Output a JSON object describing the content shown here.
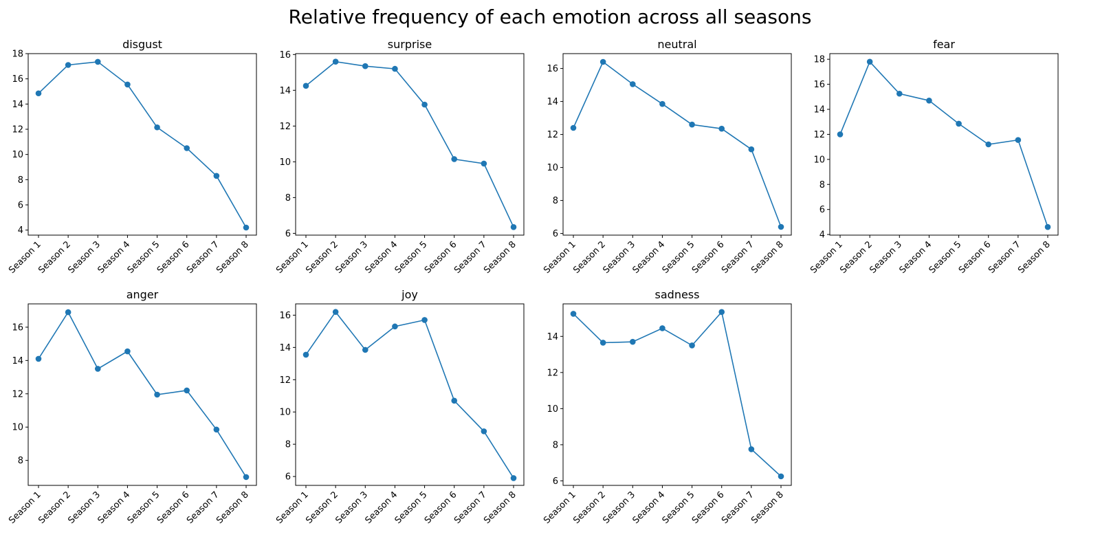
{
  "figure": {
    "title": "Relative frequency of each emotion across all seasons",
    "line_color": "#1f77b4"
  },
  "chart_data": [
    {
      "type": "line",
      "title": "disgust",
      "categories": [
        "Season 1",
        "Season 2",
        "Season 3",
        "Season 4",
        "Season 5",
        "Season 6",
        "Season 7",
        "Season 8"
      ],
      "values": [
        14.85,
        17.1,
        17.35,
        15.55,
        12.15,
        10.5,
        8.3,
        4.2
      ],
      "yticks": [
        4,
        6,
        8,
        10,
        12,
        14,
        16,
        18
      ],
      "ylim": [
        3.6,
        18.0
      ],
      "xlabel": "",
      "ylabel": "",
      "grid": false
    },
    {
      "type": "line",
      "title": "surprise",
      "categories": [
        "Season 1",
        "Season 2",
        "Season 3",
        "Season 4",
        "Season 5",
        "Season 6",
        "Season 7",
        "Season 8"
      ],
      "values": [
        14.25,
        15.6,
        15.35,
        15.2,
        13.2,
        10.15,
        9.9,
        6.35
      ],
      "yticks": [
        6,
        8,
        10,
        12,
        14,
        16
      ],
      "ylim": [
        5.9,
        16.05
      ],
      "xlabel": "",
      "ylabel": "",
      "grid": false
    },
    {
      "type": "line",
      "title": "neutral",
      "categories": [
        "Season 1",
        "Season 2",
        "Season 3",
        "Season 4",
        "Season 5",
        "Season 6",
        "Season 7",
        "Season 8"
      ],
      "values": [
        12.4,
        16.4,
        15.05,
        13.85,
        12.6,
        12.35,
        11.1,
        6.4
      ],
      "yticks": [
        6,
        8,
        10,
        12,
        14,
        16
      ],
      "ylim": [
        5.9,
        16.9
      ],
      "xlabel": "",
      "ylabel": "",
      "grid": false
    },
    {
      "type": "line",
      "title": "fear",
      "categories": [
        "Season 1",
        "Season 2",
        "Season 3",
        "Season 4",
        "Season 5",
        "Season 6",
        "Season 7",
        "Season 8"
      ],
      "values": [
        12.0,
        17.8,
        15.25,
        14.7,
        12.85,
        11.2,
        11.55,
        4.6
      ],
      "yticks": [
        4,
        6,
        8,
        10,
        12,
        14,
        16,
        18
      ],
      "ylim": [
        3.95,
        18.45
      ],
      "xlabel": "",
      "ylabel": "",
      "grid": false
    },
    {
      "type": "line",
      "title": "anger",
      "categories": [
        "Season 1",
        "Season 2",
        "Season 3",
        "Season 4",
        "Season 5",
        "Season 6",
        "Season 7",
        "Season 8"
      ],
      "values": [
        14.1,
        16.9,
        13.5,
        14.55,
        11.95,
        12.2,
        9.85,
        7.0
      ],
      "yticks": [
        8,
        10,
        12,
        14,
        16
      ],
      "ylim": [
        6.5,
        17.4
      ],
      "xlabel": "",
      "ylabel": "",
      "grid": false
    },
    {
      "type": "line",
      "title": "joy",
      "categories": [
        "Season 1",
        "Season 2",
        "Season 3",
        "Season 4",
        "Season 5",
        "Season 6",
        "Season 7",
        "Season 8"
      ],
      "values": [
        13.55,
        16.2,
        13.85,
        15.3,
        15.7,
        10.7,
        8.8,
        5.9
      ],
      "yticks": [
        6,
        8,
        10,
        12,
        14,
        16
      ],
      "ylim": [
        5.45,
        16.7
      ],
      "xlabel": "",
      "ylabel": "",
      "grid": false
    },
    {
      "type": "line",
      "title": "sadness",
      "categories": [
        "Season 1",
        "Season 2",
        "Season 3",
        "Season 4",
        "Season 5",
        "Season 6",
        "Season 7",
        "Season 8"
      ],
      "values": [
        15.25,
        13.65,
        13.7,
        14.45,
        13.5,
        15.35,
        7.75,
        6.25
      ],
      "yticks": [
        6,
        8,
        10,
        12,
        14
      ],
      "ylim": [
        5.75,
        15.8
      ],
      "xlabel": "",
      "ylabel": "",
      "grid": false
    }
  ]
}
